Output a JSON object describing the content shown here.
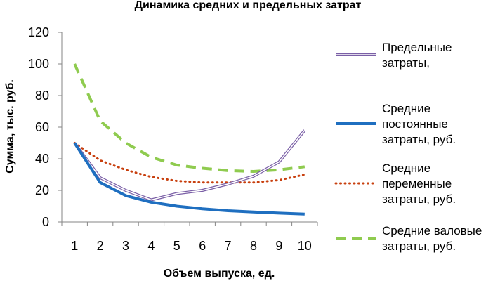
{
  "chart_data": {
    "type": "line",
    "title": "Динамика средних и предельных затрат",
    "xlabel": "Объем выпуска, ед.",
    "ylabel": "Сумма, тыс. руб.",
    "x": [
      1,
      2,
      3,
      4,
      5,
      6,
      7,
      8,
      9,
      10
    ],
    "ylim": [
      0,
      120
    ],
    "yticks": [
      0,
      20,
      40,
      60,
      80,
      100,
      120
    ],
    "grid": false,
    "legend_position": "right",
    "series": [
      {
        "name_lines": [
          "Предельные",
          "затраты,"
        ],
        "values": [
          50,
          28,
          20,
          14,
          18,
          20,
          24,
          29,
          38,
          58
        ],
        "color": "#7a5fa6",
        "style": "double-line"
      },
      {
        "name_lines": [
          "Средние",
          "постоянные",
          "затраты, руб."
        ],
        "values": [
          50,
          25,
          16.7,
          12.5,
          10,
          8.3,
          7.1,
          6.3,
          5.6,
          5
        ],
        "color": "#1f6fc0",
        "style": "solid-thick"
      },
      {
        "name_lines": [
          "Средние",
          "переменные",
          "затраты, руб."
        ],
        "values": [
          50,
          39,
          33,
          28.5,
          26,
          25,
          25,
          25,
          26.5,
          30
        ],
        "color": "#c8400f",
        "style": "dotted"
      },
      {
        "name_lines": [
          "Средние валовые",
          "затраты, руб."
        ],
        "values": [
          100,
          64,
          50,
          41,
          36,
          34,
          32.5,
          32,
          33,
          35
        ],
        "color": "#8fcb4f",
        "style": "dashed"
      }
    ]
  }
}
